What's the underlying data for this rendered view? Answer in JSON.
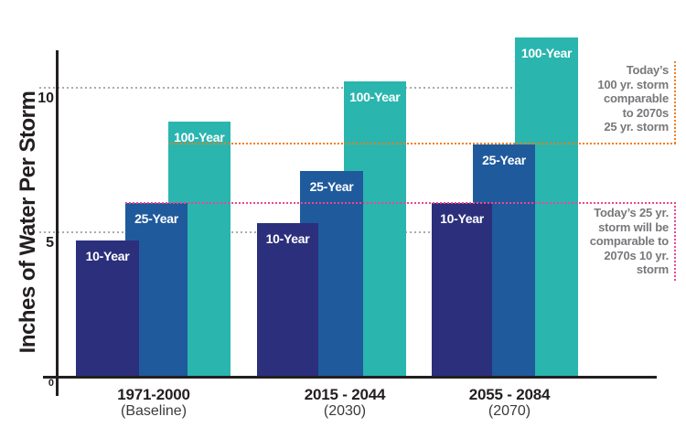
{
  "colors": {
    "bar_10_year": "#2B2F7C",
    "bar_25_year": "#1F5A9D",
    "bar_100_year": "#2AB5AF",
    "bar_label_text": "#FFFFFF",
    "axis": "#231F20",
    "gridline": "#A9ABAE",
    "annotation_orange": "#F47E20",
    "annotation_pink": "#ED468F",
    "annotation_text": "#77787B"
  },
  "chart_data": {
    "type": "bar",
    "title": "",
    "ylabel": "Inches of Water Per Storm",
    "xlabel": "",
    "ylim": [
      0,
      12.7
    ],
    "yticks": [
      0,
      5,
      10
    ],
    "grid": "dotted horizontal gridlines at y=5 and y=10",
    "legend_position": "labels printed on bars",
    "categories": [
      "1971-2000 (Baseline)",
      "2015 - 2044 (2030)",
      "2055 - 2084 (2070)"
    ],
    "groups": [
      {
        "period": "1971-2000",
        "era": "(Baseline)"
      },
      {
        "period": "2015 - 2044",
        "era": "(2030)"
      },
      {
        "period": "2055 - 2084",
        "era": "(2070)"
      }
    ],
    "series": [
      {
        "name": "10-Year",
        "values": [
          4.7,
          5.3,
          6.0
        ]
      },
      {
        "name": "25-Year",
        "values": [
          6.0,
          7.1,
          8.0
        ]
      },
      {
        "name": "100-Year",
        "values": [
          8.8,
          10.2,
          11.7
        ]
      }
    ],
    "annotations": [
      {
        "id": "orange",
        "text": "Today’s\n100 yr. storm\ncomparable\nto 2070s\n25 yr. storm",
        "line_value": 8.0,
        "line_color": "#F47E20"
      },
      {
        "id": "pink",
        "text": "Today’s 25 yr.\nstorm will be\ncomparable to\n2070s 10 yr.\nstorm",
        "line_value": 6.0,
        "line_color": "#ED468F"
      }
    ]
  },
  "axis": {
    "ytick_labels": {
      "zero": "0",
      "five": "5",
      "ten": "10"
    }
  }
}
